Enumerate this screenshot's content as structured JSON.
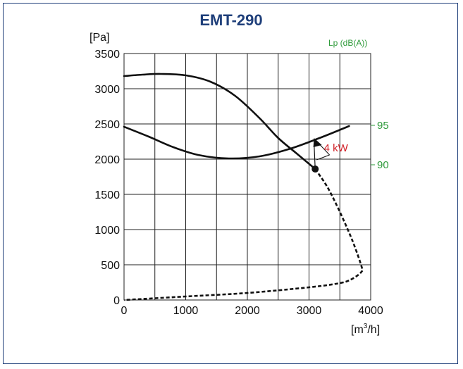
{
  "chart_data": {
    "type": "line",
    "title": "EMT-290",
    "ylabel": "[Pa]",
    "xlabel_base": "[m",
    "xlabel_sup": "3",
    "xlabel_tail": "/h]",
    "xlim": [
      0,
      4000
    ],
    "ylim": [
      0,
      3500
    ],
    "x_ticks": [
      "0",
      "1000",
      "2000",
      "3000",
      "4000"
    ],
    "y_ticks": [
      "0",
      "500",
      "1000",
      "1500",
      "2000",
      "2500",
      "3000",
      "3500"
    ],
    "grid": true,
    "sound_axis": {
      "label": "Lp (dB(A))",
      "ticks": [
        {
          "label": "95",
          "value_pa": 2480
        },
        {
          "label": "90",
          "value_pa": 1920
        }
      ]
    },
    "series": [
      {
        "style": "solid",
        "x": [
          0,
          300,
          600,
          1000,
          1400,
          1800,
          2200,
          2500,
          2800,
          3100
        ],
        "y": [
          3180,
          3200,
          3210,
          3190,
          3100,
          2900,
          2580,
          2300,
          2080,
          1860
        ]
      },
      {
        "style": "dashed",
        "x": [
          3100,
          3300,
          3500,
          3700,
          3850,
          3850,
          3700,
          3500,
          3000,
          2000,
          1000,
          0
        ],
        "y": [
          1860,
          1600,
          1250,
          850,
          480,
          400,
          300,
          240,
          180,
          100,
          50,
          0
        ]
      },
      {
        "style": "solid",
        "x": [
          0,
          400,
          800,
          1200,
          1700,
          2200,
          2700,
          3200,
          3650
        ],
        "y": [
          2460,
          2320,
          2170,
          2060,
          2010,
          2040,
          2150,
          2310,
          2470
        ]
      }
    ],
    "operating_point": {
      "x": 3100,
      "y": 1860
    },
    "annotation": {
      "label": "4 kW",
      "x": 3150,
      "y": 2200
    }
  }
}
